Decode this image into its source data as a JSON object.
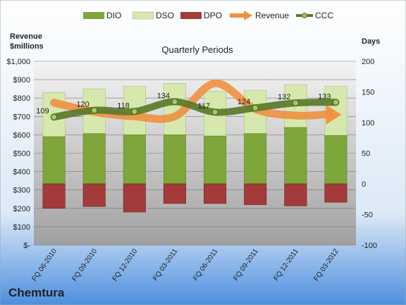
{
  "company": "Chemtura",
  "chart_data": {
    "type": "bar",
    "title": "Quarterly Periods",
    "ylabel_left": "Revenue $millions",
    "ylabel_right": "Days",
    "ylim_left": [
      0,
      1000
    ],
    "ylim_right": [
      -100,
      200
    ],
    "left_ticks": [
      "$-",
      "$100",
      "$200",
      "$300",
      "$400",
      "$500",
      "$600",
      "$700",
      "$800",
      "$900",
      "$1,000"
    ],
    "right_ticks": [
      "-100",
      "-50",
      "0",
      "50",
      "100",
      "150",
      "200"
    ],
    "categories": [
      "FQ 06-2010",
      "FQ 09-2010",
      "FQ 12-2010",
      "FQ 03-2011",
      "FQ 06-2011",
      "FQ 09-2011",
      "FQ 12-2011",
      "FQ 03-2012"
    ],
    "legend": [
      "DIO",
      "DSO",
      "DPO",
      "Revenue",
      "CCC"
    ],
    "legend_position": "top",
    "grid": true,
    "series": [
      {
        "name": "DIO",
        "axis": "right",
        "values": [
          77,
          82,
          80,
          80,
          78,
          82,
          92,
          79
        ],
        "color": "#7ea63a"
      },
      {
        "name": "DSO",
        "axis": "right",
        "values": [
          72,
          73,
          79,
          84,
          73,
          70,
          70,
          80
        ],
        "color": "#d6e8ad"
      },
      {
        "name": "DPO",
        "axis": "right",
        "values": [
          -40,
          -37,
          -46,
          -32,
          -32,
          -34,
          -36,
          -30
        ],
        "color": "#a33b3b"
      },
      {
        "name": "Revenue",
        "axis": "left",
        "values": [
          775,
          725,
          700,
          700,
          880,
          740,
          705,
          710
        ],
        "color": "#f09040"
      },
      {
        "name": "CCC",
        "axis": "right",
        "values": [
          109,
          120,
          118,
          134,
          117,
          124,
          132,
          133
        ],
        "color": "#5a7a2a"
      }
    ],
    "data_labels": [
      "109",
      "120",
      "118",
      "134",
      "117",
      "124",
      "132",
      "133"
    ]
  }
}
